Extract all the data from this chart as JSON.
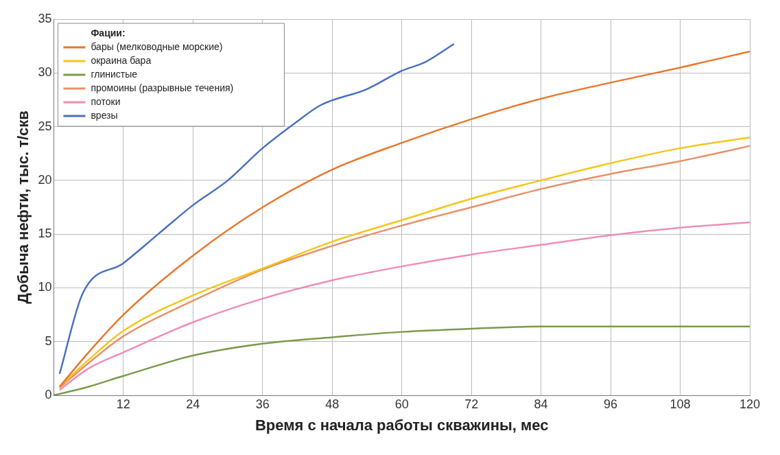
{
  "chart_data": {
    "type": "line",
    "xlabel": "Время с начала работы скважины, мес",
    "ylabel": "Добыча нефти, тыс. т/скв",
    "legend_title": "Фации:",
    "legend": "top left",
    "grid": true,
    "xlim": [
      0,
      120
    ],
    "ylim": [
      0,
      35
    ],
    "xticks": [
      12,
      24,
      36,
      48,
      60,
      72,
      84,
      96,
      108,
      120
    ],
    "yticks": [
      0,
      5,
      10,
      15,
      20,
      25,
      30,
      35
    ],
    "series": [
      {
        "name": "бары (мелководные морские)",
        "color": "#e8762b",
        "x": [
          1,
          6,
          12,
          24,
          36,
          48,
          60,
          72,
          84,
          96,
          108,
          120
        ],
        "values": [
          0.8,
          4,
          7.5,
          13,
          17.5,
          21,
          23.5,
          25.7,
          27.6,
          29.1,
          30.5,
          32
        ]
      },
      {
        "name": "окраина бара",
        "color": "#f5c518",
        "x": [
          1,
          6,
          12,
          24,
          36,
          48,
          60,
          72,
          84,
          96,
          108,
          120
        ],
        "values": [
          0.8,
          3.3,
          6,
          9.3,
          11.8,
          14.3,
          16.3,
          18.3,
          20,
          21.6,
          23,
          24
        ]
      },
      {
        "name": "глинистые",
        "color": "#7a9a4a",
        "x": [
          0,
          6,
          12,
          24,
          36,
          48,
          60,
          72,
          84,
          96,
          108,
          120
        ],
        "values": [
          0,
          0.8,
          1.8,
          3.7,
          4.8,
          5.4,
          5.9,
          6.2,
          6.4,
          6.4,
          6.4,
          6.4
        ]
      },
      {
        "name": "промоины (разрывные течения)",
        "color": "#e8906a",
        "x": [
          1,
          6,
          12,
          24,
          36,
          48,
          60,
          72,
          84,
          96,
          108,
          120
        ],
        "values": [
          0.7,
          3,
          5.5,
          8.8,
          11.7,
          13.9,
          15.8,
          17.5,
          19.2,
          20.6,
          21.8,
          23.2
        ]
      },
      {
        "name": "потоки",
        "color": "#f08cb8",
        "x": [
          1,
          6,
          12,
          24,
          36,
          48,
          60,
          72,
          84,
          96,
          108,
          120
        ],
        "values": [
          0.5,
          2.5,
          4,
          6.8,
          9,
          10.7,
          12,
          13.1,
          14,
          14.9,
          15.6,
          16.1
        ]
      },
      {
        "name": "врезы",
        "color": "#4a6fc0",
        "x": [
          1,
          5,
          12,
          18,
          24,
          30,
          36,
          42,
          46,
          54,
          60,
          64,
          69
        ],
        "values": [
          2,
          9.5,
          12.3,
          15,
          17.7,
          20,
          23,
          25.5,
          27,
          28.5,
          30.2,
          31,
          32.7
        ]
      }
    ]
  }
}
